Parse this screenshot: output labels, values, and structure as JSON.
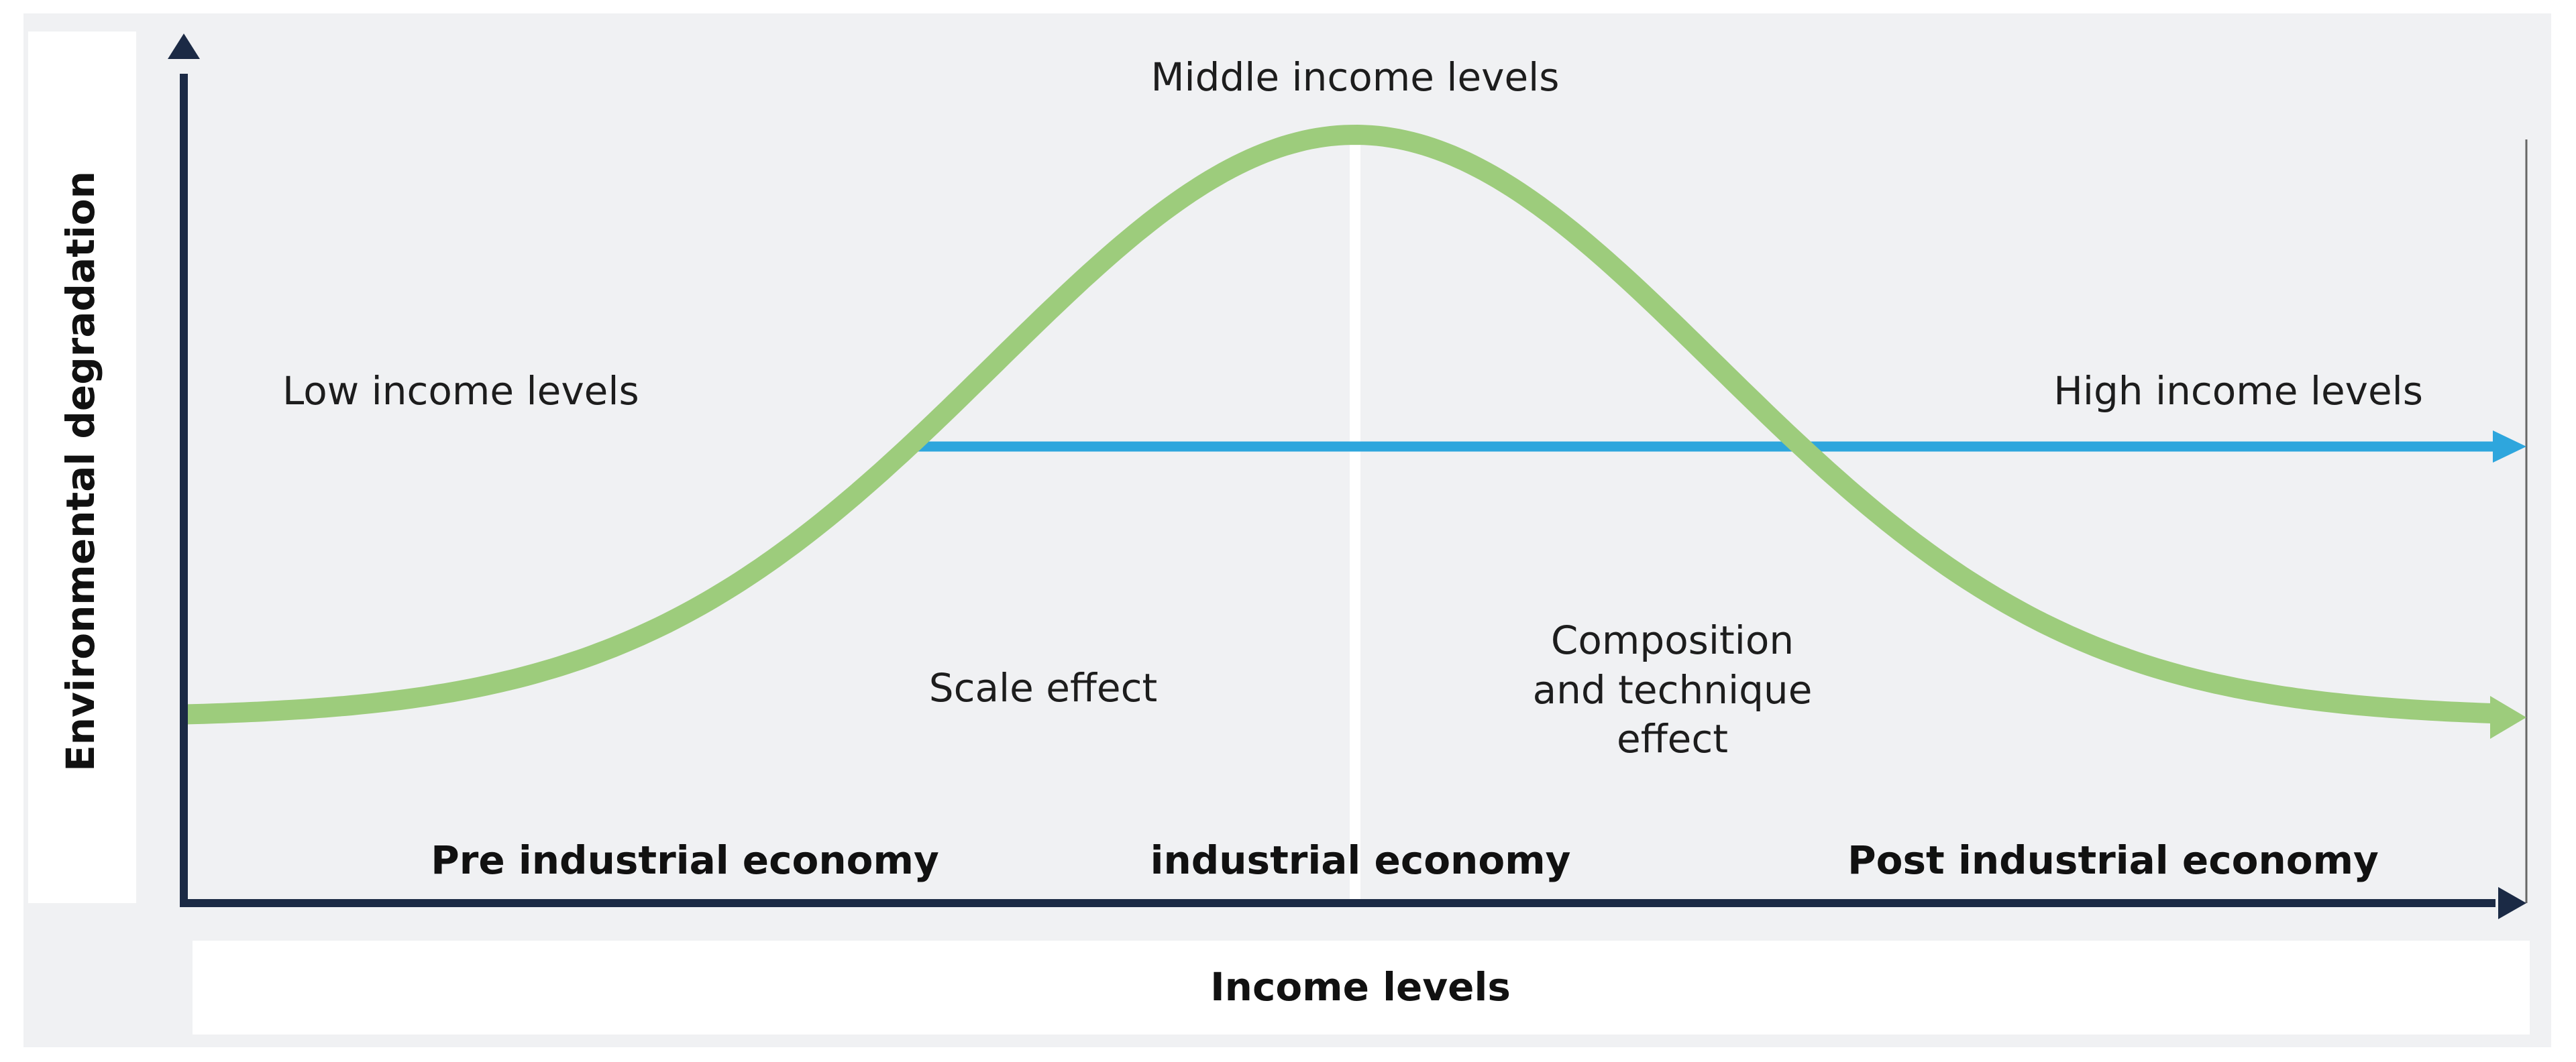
{
  "diagram": {
    "y_axis_label": "Environmental degradation",
    "x_axis_label": "Income levels",
    "annotations": {
      "middle": "Middle income levels",
      "low": "Low income levels",
      "high": "High income levels",
      "scale": "Scale effect",
      "composition": [
        "Composition",
        "and technique",
        "effect"
      ]
    },
    "stages": [
      "Pre industrial economy",
      "industrial economy",
      "Post industrial economy"
    ],
    "colors": {
      "background": "#f0f1f3",
      "axis": "#1b2a45",
      "curve": "#9dcc7c",
      "threshold_line": "#2ea6dd",
      "label_box": "#ffffff"
    }
  }
}
